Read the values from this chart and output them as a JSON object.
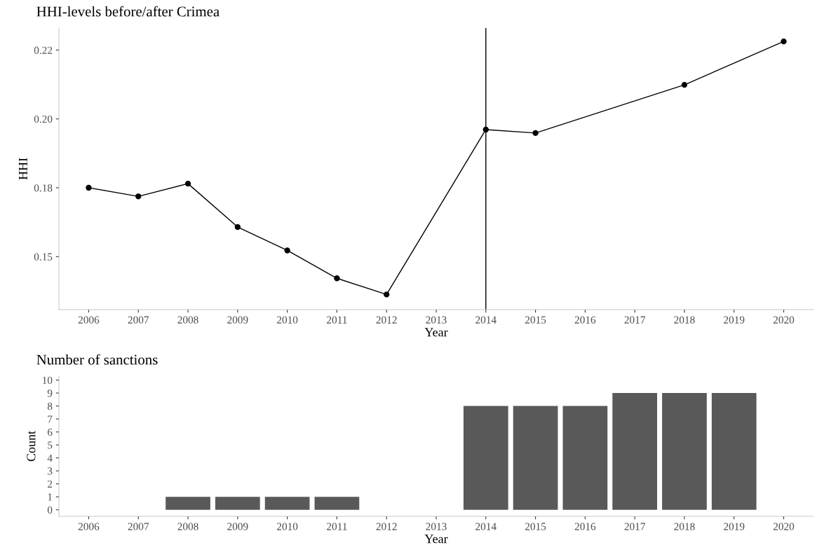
{
  "chart_data": [
    {
      "type": "line",
      "title": "HHI-levels before/after Crimea",
      "xlabel": "Year",
      "ylabel": "HHI",
      "marker": "circle",
      "line_style": "solid",
      "grid": false,
      "legend": false,
      "x": [
        2006,
        2007,
        2008,
        2009,
        2010,
        2011,
        2012,
        2014,
        2015,
        2018,
        2020
      ],
      "series": [
        {
          "color": "#000000",
          "values": [
            0.175,
            0.1725,
            0.1762,
            0.1636,
            0.1568,
            0.1487,
            0.144,
            0.1919,
            0.1909,
            0.2049,
            0.2175
          ]
        }
      ],
      "xlim": [
        2005.4,
        2020.6
      ],
      "xticks": [
        2006,
        2007,
        2008,
        2009,
        2010,
        2011,
        2012,
        2013,
        2014,
        2015,
        2016,
        2017,
        2018,
        2019,
        2020
      ],
      "ylim": [
        0.1396,
        0.2214
      ],
      "yticks": [
        {
          "value": 0.155,
          "label": "0.15"
        },
        {
          "value": 0.175,
          "label": "0.18"
        },
        {
          "value": 0.195,
          "label": "0.20"
        },
        {
          "value": 0.215,
          "label": "0.22"
        }
      ],
      "ref_lines": [
        {
          "axis": "x",
          "value": 2014,
          "color": "#000000",
          "line_style": "solid"
        }
      ]
    },
    {
      "type": "bar",
      "title": "Number of sanctions",
      "xlabel": "Year",
      "ylabel": "Count",
      "grid": false,
      "legend": false,
      "categories": [
        "2006",
        "2007",
        "2008",
        "2009",
        "2010",
        "2011",
        "2012",
        "2013",
        "2014",
        "2015",
        "2016",
        "2017",
        "2018",
        "2019",
        "2020"
      ],
      "series": [
        {
          "color": "#595959",
          "values": [
            0,
            0,
            1,
            1,
            1,
            1,
            0,
            0,
            8,
            8,
            8,
            9,
            9,
            9,
            0
          ]
        }
      ],
      "ylim": [
        -0.5,
        10.3
      ],
      "yticks": [
        0,
        1,
        2,
        3,
        4,
        5,
        6,
        7,
        8,
        9,
        10
      ]
    }
  ]
}
